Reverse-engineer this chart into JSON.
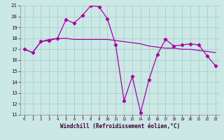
{
  "xlabel": "Windchill (Refroidissement éolien,°C)",
  "background_color": "#cce8e4",
  "grid_color": "#aad4d0",
  "line_color": "#aa00aa",
  "x_hours": [
    0,
    1,
    2,
    3,
    4,
    5,
    6,
    7,
    8,
    9,
    10,
    11,
    12,
    13,
    14,
    15,
    16,
    17,
    18,
    19,
    20,
    21,
    22,
    23
  ],
  "series1": [
    17.0,
    16.7,
    17.7,
    17.8,
    18.0,
    19.7,
    19.4,
    20.1,
    21.0,
    20.9,
    19.8,
    17.4,
    12.3,
    14.5,
    11.2,
    14.2,
    16.5,
    17.9,
    17.3,
    17.4,
    17.5,
    17.4,
    16.4,
    15.5
  ],
  "series2": [
    17.0,
    16.7,
    17.7,
    17.9,
    18.0,
    18.0,
    17.9,
    17.9,
    17.9,
    17.9,
    17.9,
    17.8,
    17.7,
    17.6,
    17.5,
    17.3,
    17.2,
    17.1,
    17.1,
    17.0,
    17.0,
    16.9,
    16.8,
    16.7
  ],
  "ylim": [
    11,
    21
  ],
  "yticks": [
    11,
    12,
    13,
    14,
    15,
    16,
    17,
    18,
    19,
    20,
    21
  ],
  "xticks": [
    0,
    1,
    2,
    3,
    4,
    5,
    6,
    7,
    8,
    9,
    10,
    11,
    12,
    13,
    14,
    15,
    16,
    17,
    18,
    19,
    20,
    21,
    22,
    23
  ],
  "xlabel_fontsize": 5.5,
  "ytick_fontsize": 5.2,
  "xtick_fontsize": 4.0
}
